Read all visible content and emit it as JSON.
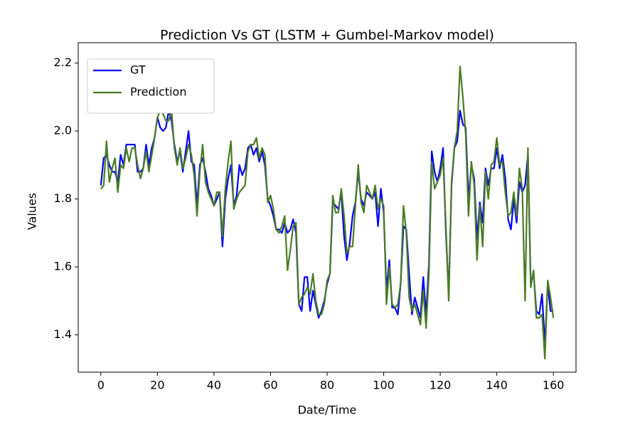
{
  "chart_data": {
    "type": "line",
    "title": "Prediction Vs GT (LSTM + Gumbel-Markov model)",
    "x_label": "Date/Time",
    "y_label": "Values",
    "x": [
      0,
      1,
      2,
      3,
      4,
      5,
      6,
      7,
      8,
      9,
      10,
      11,
      12,
      13,
      14,
      15,
      16,
      17,
      18,
      19,
      20,
      21,
      22,
      23,
      24,
      25,
      26,
      27,
      28,
      29,
      30,
      31,
      32,
      33,
      34,
      35,
      36,
      37,
      38,
      39,
      40,
      41,
      42,
      43,
      44,
      45,
      46,
      47,
      48,
      49,
      50,
      51,
      52,
      53,
      54,
      55,
      56,
      57,
      58,
      59,
      60,
      61,
      62,
      63,
      64,
      65,
      66,
      67,
      68,
      69,
      70,
      71,
      72,
      73,
      74,
      75,
      76,
      77,
      78,
      79,
      80,
      81,
      82,
      83,
      84,
      85,
      86,
      87,
      88,
      89,
      90,
      91,
      92,
      93,
      94,
      95,
      96,
      97,
      98,
      99,
      100,
      101,
      102,
      103,
      104,
      105,
      106,
      107,
      108,
      109,
      110,
      111,
      112,
      113,
      114,
      115,
      116,
      117,
      118,
      119,
      120,
      121,
      122,
      123,
      124,
      125,
      126,
      127,
      128,
      129,
      130,
      131,
      132,
      133,
      134,
      135,
      136,
      137,
      138,
      139,
      140,
      141,
      142,
      143,
      144,
      145,
      146,
      147,
      148,
      149,
      150,
      151,
      152,
      153,
      154,
      155,
      156,
      157,
      158,
      159,
      160
    ],
    "series": [
      {
        "name": "GT",
        "color": "#0000ff",
        "values": [
          1.84,
          1.92,
          1.93,
          1.9,
          1.88,
          1.88,
          1.85,
          1.93,
          1.9,
          1.96,
          1.96,
          1.96,
          1.96,
          1.88,
          1.88,
          1.89,
          1.96,
          1.9,
          1.95,
          1.98,
          2.04,
          2.01,
          2.0,
          2.01,
          2.06,
          2.03,
          1.96,
          1.91,
          1.94,
          1.88,
          1.94,
          2.0,
          1.91,
          1.9,
          1.78,
          1.9,
          1.92,
          1.88,
          1.83,
          1.81,
          1.78,
          1.8,
          1.82,
          1.66,
          1.8,
          1.86,
          1.9,
          1.78,
          1.81,
          1.9,
          1.87,
          1.89,
          1.95,
          1.96,
          1.93,
          1.95,
          1.91,
          1.94,
          1.9,
          1.8,
          1.78,
          1.75,
          1.71,
          1.71,
          1.7,
          1.73,
          1.7,
          1.71,
          1.74,
          1.7,
          1.49,
          1.47,
          1.57,
          1.57,
          1.47,
          1.53,
          1.49,
          1.45,
          1.47,
          1.5,
          1.55,
          1.58,
          1.79,
          1.78,
          1.77,
          1.82,
          1.69,
          1.62,
          1.67,
          1.75,
          1.79,
          1.88,
          1.8,
          1.78,
          1.82,
          1.81,
          1.8,
          1.82,
          1.72,
          1.83,
          1.76,
          1.53,
          1.62,
          1.48,
          1.48,
          1.46,
          1.55,
          1.72,
          1.71,
          1.58,
          1.46,
          1.51,
          1.48,
          1.45,
          1.57,
          1.46,
          1.61,
          1.94,
          1.88,
          1.85,
          1.89,
          1.95,
          1.7,
          1.52,
          1.84,
          1.95,
          1.97,
          2.06,
          2.02,
          2.01,
          1.8,
          1.9,
          1.86,
          1.68,
          1.79,
          1.73,
          1.89,
          1.84,
          1.89,
          1.89,
          1.95,
          1.89,
          1.93,
          1.86,
          1.74,
          1.71,
          1.8,
          1.73,
          1.85,
          1.82,
          1.84,
          1.93,
          1.55,
          1.58,
          1.47,
          1.46,
          1.52,
          1.37,
          1.55,
          1.47,
          1.47
        ]
      },
      {
        "name": "Prediction",
        "color": "#4a7c23",
        "values": [
          1.83,
          1.84,
          1.97,
          1.85,
          1.89,
          1.92,
          1.82,
          1.9,
          1.89,
          1.95,
          1.91,
          1.95,
          1.95,
          1.9,
          1.86,
          1.89,
          1.94,
          1.88,
          1.93,
          1.98,
          2.04,
          2.06,
          2.05,
          2.03,
          2.03,
          2.06,
          1.95,
          1.9,
          1.95,
          1.89,
          1.92,
          1.96,
          1.93,
          1.87,
          1.75,
          1.88,
          1.96,
          1.85,
          1.82,
          1.8,
          1.78,
          1.82,
          1.82,
          1.69,
          1.83,
          1.91,
          1.97,
          1.77,
          1.8,
          1.82,
          1.83,
          1.84,
          1.94,
          1.96,
          1.96,
          1.98,
          1.92,
          1.95,
          1.93,
          1.79,
          1.81,
          1.77,
          1.71,
          1.7,
          1.72,
          1.75,
          1.59,
          1.65,
          1.72,
          1.73,
          1.49,
          1.51,
          1.52,
          1.54,
          1.52,
          1.58,
          1.5,
          1.46,
          1.46,
          1.49,
          1.56,
          1.58,
          1.81,
          1.76,
          1.76,
          1.83,
          1.75,
          1.64,
          1.66,
          1.66,
          1.78,
          1.9,
          1.79,
          1.76,
          1.84,
          1.82,
          1.8,
          1.84,
          1.77,
          1.8,
          1.78,
          1.49,
          1.6,
          1.49,
          1.48,
          1.49,
          1.55,
          1.78,
          1.7,
          1.51,
          1.47,
          1.49,
          1.46,
          1.43,
          1.53,
          1.42,
          1.58,
          1.91,
          1.83,
          1.85,
          1.87,
          1.92,
          1.72,
          1.5,
          1.85,
          1.95,
          2.0,
          2.19,
          2.1,
          1.99,
          1.75,
          1.91,
          1.84,
          1.62,
          1.78,
          1.66,
          1.88,
          1.8,
          1.9,
          1.91,
          1.98,
          1.9,
          1.91,
          1.82,
          1.75,
          1.76,
          1.82,
          1.75,
          1.89,
          1.83,
          1.5,
          1.95,
          1.54,
          1.59,
          1.45,
          1.45,
          1.46,
          1.33,
          1.56,
          1.51,
          1.45
        ]
      }
    ],
    "xlim": [
      -8,
      168
    ],
    "ylim": [
      1.29,
      2.26
    ],
    "xticks": [
      0,
      20,
      40,
      60,
      80,
      100,
      120,
      140,
      160
    ],
    "yticks": [
      1.4,
      1.6,
      1.8,
      {
        "value": 2,
        "label": "2.0"
      },
      2.2
    ],
    "legend": "upper left"
  }
}
